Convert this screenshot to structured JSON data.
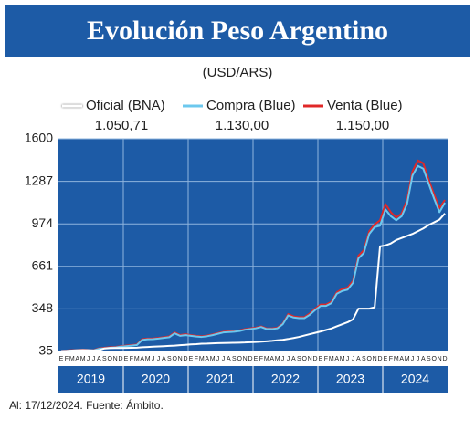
{
  "chart_data": {
    "type": "line",
    "title": "Evolución Peso Argentino",
    "subtitle": "(USD/ARS)",
    "source": "Al: 17/12/2024. Fuente: Ámbito.",
    "categories": [
      "E",
      "F",
      "M",
      "A",
      "M",
      "J",
      "J",
      "A",
      "S",
      "O",
      "N",
      "D",
      "E",
      "F",
      "M",
      "A",
      "M",
      "J",
      "J",
      "A",
      "S",
      "O",
      "N",
      "D",
      "E",
      "F",
      "M",
      "A",
      "M",
      "J",
      "J",
      "A",
      "S",
      "O",
      "N",
      "D",
      "E",
      "F",
      "M",
      "A",
      "M",
      "J",
      "J",
      "A",
      "S",
      "O",
      "N",
      "D",
      "E",
      "F",
      "M",
      "A",
      "M",
      "J",
      "J",
      "A",
      "S",
      "O",
      "N",
      "D",
      "E",
      "F",
      "M",
      "A",
      "M",
      "J",
      "J",
      "A",
      "S",
      "O",
      "N",
      "D"
    ],
    "years": [
      "2019",
      "2020",
      "2021",
      "2022",
      "2023",
      "2024"
    ],
    "series": [
      {
        "name": "Oficial (BNA)",
        "color": "#ffffff",
        "current": "1.050,71",
        "values": [
          37,
          38,
          42,
          43,
          44,
          44,
          42,
          44,
          57,
          59,
          60,
          60,
          61,
          62,
          63,
          66,
          68,
          70,
          72,
          74,
          76,
          78,
          81,
          84,
          87,
          89,
          92,
          93,
          95,
          96,
          97,
          98,
          99,
          100,
          101,
          103,
          105,
          107,
          110,
          113,
          117,
          121,
          127,
          134,
          142,
          152,
          162,
          172,
          182,
          193,
          204,
          220,
          235,
          250,
          272,
          350,
          350,
          350,
          360,
          808,
          815,
          830,
          855,
          870,
          885,
          900,
          920,
          940,
          965,
          985,
          1005,
          1050.71
        ]
      },
      {
        "name": "Compra (Blue)",
        "color": "#6cc8ee",
        "current": "1.130,00",
        "values": [
          38,
          40,
          42,
          44,
          46,
          44,
          43,
          55,
          58,
          62,
          64,
          70,
          74,
          78,
          82,
          120,
          125,
          126,
          130,
          135,
          140,
          168,
          150,
          155,
          150,
          145,
          142,
          147,
          155,
          165,
          175,
          178,
          180,
          185,
          195,
          200,
          205,
          215,
          200,
          200,
          205,
          235,
          300,
          285,
          280,
          280,
          305,
          340,
          370,
          370,
          390,
          460,
          480,
          490,
          540,
          720,
          760,
          900,
          950,
          960,
          1080,
          1030,
          1000,
          1030,
          1120,
          1330,
          1400,
          1380,
          1270,
          1160,
          1060,
          1130
        ]
      },
      {
        "name": "Venta (Blue)",
        "color": "#e02828",
        "current": "1.150,00",
        "values": [
          39,
          42,
          44,
          46,
          48,
          46,
          45,
          58,
          62,
          66,
          68,
          74,
          78,
          82,
          86,
          126,
          130,
          131,
          135,
          140,
          146,
          175,
          156,
          162,
          155,
          150,
          147,
          152,
          160,
          170,
          180,
          183,
          185,
          190,
          200,
          205,
          210,
          220,
          205,
          205,
          210,
          240,
          310,
          293,
          288,
          288,
          315,
          350,
          380,
          380,
          400,
          470,
          495,
          505,
          555,
          740,
          780,
          920,
          970,
          1000,
          1120,
          1060,
          1020,
          1050,
          1150,
          1360,
          1440,
          1420,
          1300,
          1190,
          1090,
          1150
        ]
      }
    ],
    "ylim": [
      35,
      1600
    ],
    "yticks": [
      35,
      348,
      661,
      974,
      1287,
      1600
    ],
    "grid": true
  }
}
